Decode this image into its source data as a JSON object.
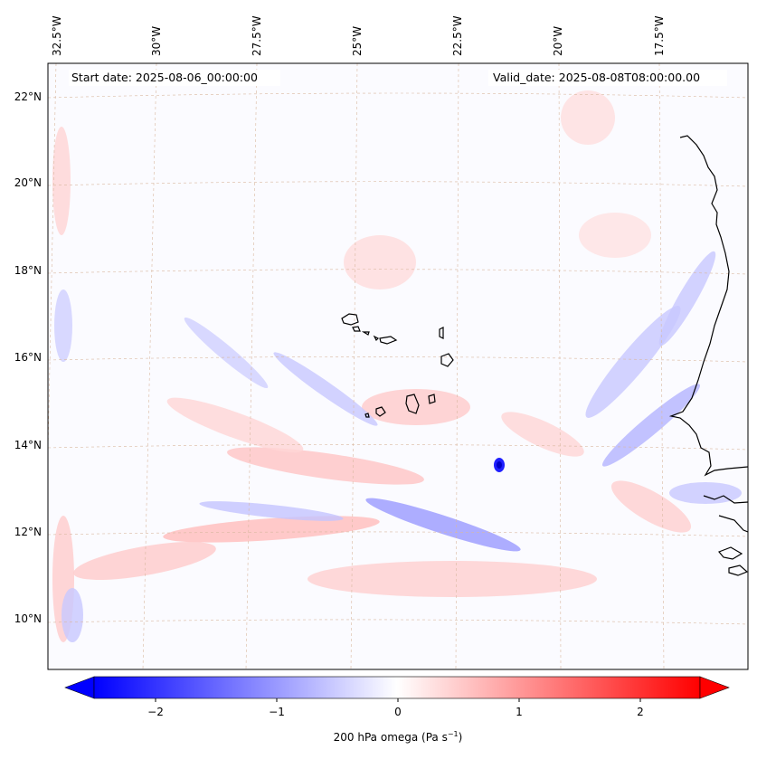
{
  "map": {
    "start_date": "Start date: 2025-08-06_00:00:00",
    "valid_date": "Valid_date: 2025-08-08T08:00:00.00",
    "lon_labels": [
      "32.5°W",
      "30°W",
      "27.5°W",
      "25°W",
      "22.5°W",
      "20°W",
      "17.5°W"
    ],
    "lat_labels": [
      "22°N",
      "20°N",
      "18°N",
      "16°N",
      "14°N",
      "12°N",
      "10°N"
    ]
  },
  "colorbar": {
    "title": "200 hPa omega (Pa s",
    "title_sup": "−1",
    "title_close": ")",
    "ticks": [
      "−2",
      "−1",
      "0",
      "1",
      "2"
    ],
    "range": [
      -2.6,
      2.6
    ],
    "color_negative": "#0000ff",
    "color_zero": "#ffffff",
    "color_positive": "#ff0000"
  },
  "colors": {
    "coastline": "#000000",
    "gridline": "#d9b8a0"
  }
}
